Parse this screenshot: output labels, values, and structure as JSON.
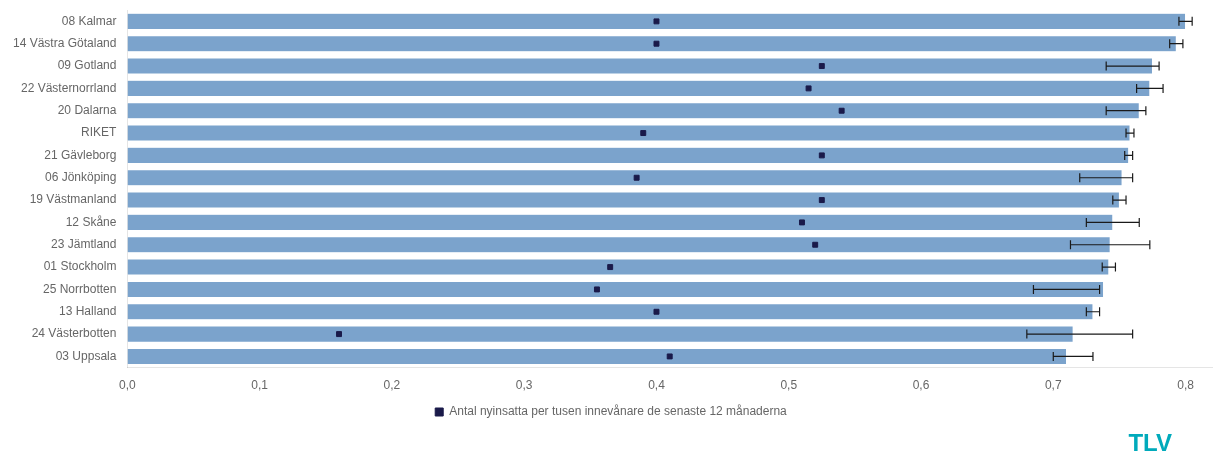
{
  "chart_data": {
    "type": "bar",
    "orientation": "horizontal",
    "categories": [
      "08 Kalmar",
      "14 Västra Götaland",
      "09 Gotland",
      "22 Västernorrland",
      "20 Dalarna",
      "RIKET",
      "21 Gävleborg",
      "06 Jönköping",
      "19 Västmanland",
      "12 Skåne",
      "23 Jämtland",
      "01 Stockholm",
      "25 Norrbotten",
      "13 Halland",
      "24 Västerbotten",
      "03 Uppsala"
    ],
    "series": [
      {
        "type": "bar",
        "color": "#7ba3cc",
        "values": [
          0.8,
          0.793,
          0.775,
          0.773,
          0.765,
          0.758,
          0.757,
          0.752,
          0.75,
          0.745,
          0.743,
          0.742,
          0.738,
          0.73,
          0.715,
          0.71
        ]
      },
      {
        "type": "scatter",
        "name": "Antal nyinsatta per tusen innevånare de senaste 12 månaderna",
        "color": "#1a1a4a",
        "marker": "square",
        "values": [
          0.4,
          0.4,
          0.525,
          0.515,
          0.54,
          0.39,
          0.525,
          0.385,
          0.525,
          0.51,
          0.52,
          0.365,
          0.355,
          0.4,
          0.16,
          0.41
        ]
      }
    ],
    "error_bars": {
      "color": "#1a1a1a",
      "center": [
        0.8,
        0.793,
        0.76,
        0.773,
        0.755,
        0.758,
        0.757,
        0.74,
        0.75,
        0.745,
        0.743,
        0.742,
        0.71,
        0.73,
        0.72,
        0.715
      ],
      "low": [
        0.005,
        0.005,
        0.02,
        0.01,
        0.015,
        0.003,
        0.003,
        0.02,
        0.005,
        0.02,
        0.03,
        0.005,
        0.025,
        0.005,
        0.04,
        0.015
      ],
      "high": [
        0.005,
        0.005,
        0.02,
        0.01,
        0.015,
        0.003,
        0.003,
        0.02,
        0.005,
        0.02,
        0.03,
        0.005,
        0.025,
        0.005,
        0.04,
        0.015
      ]
    },
    "xlim": [
      0.0,
      0.82
    ],
    "xticks": [
      {
        "value": 0.0,
        "label": "0,0"
      },
      {
        "value": 0.1,
        "label": "0,1"
      },
      {
        "value": 0.2,
        "label": "0,2"
      },
      {
        "value": 0.3,
        "label": "0,3"
      },
      {
        "value": 0.4,
        "label": "0,4"
      },
      {
        "value": 0.5,
        "label": "0,5"
      },
      {
        "value": 0.6,
        "label": "0,6"
      },
      {
        "value": 0.7,
        "label": "0,7"
      },
      {
        "value": 0.8,
        "label": "0,8"
      }
    ],
    "grid": false,
    "legend": "bottom",
    "annotations": [
      {
        "text": "TLV",
        "color": "#00aabb"
      }
    ]
  }
}
